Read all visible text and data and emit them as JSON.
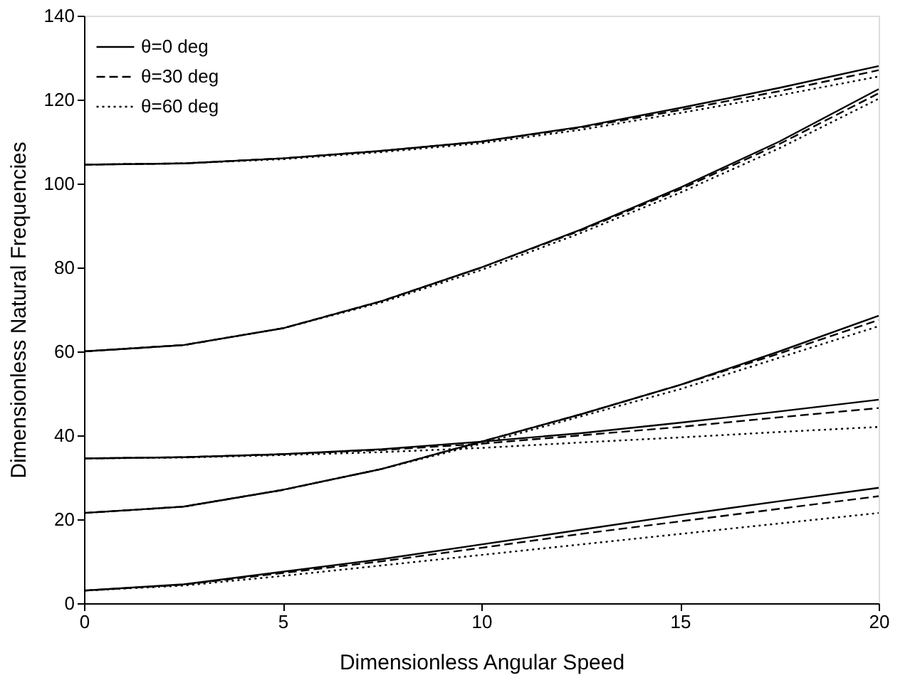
{
  "chart_data": {
    "type": "line",
    "xlabel": "Dimensionless Angular Speed",
    "ylabel": "Dimensionless Natural Frequencies",
    "x": [
      0,
      2.5,
      5,
      7.5,
      10,
      12.5,
      15,
      17.5,
      20
    ],
    "xlim": [
      0,
      20
    ],
    "xticks": [
      0,
      5,
      10,
      15,
      20
    ],
    "ylim": [
      0,
      140
    ],
    "yticks": [
      0,
      20,
      40,
      60,
      80,
      100,
      120,
      140
    ],
    "grid": false,
    "legend": "top left",
    "marker": "none",
    "series": [
      {
        "name": "θ=0 deg",
        "color": "#000000",
        "line_style": "solid",
        "values": [
          3,
          4.5,
          7.5,
          10.5,
          14,
          17.5,
          21,
          24.3,
          27.5
        ]
      },
      {
        "name": "θ=30 deg",
        "color": "#000000",
        "line_style": "dashed",
        "values": [
          3,
          4.4,
          7.2,
          10,
          13.2,
          16.5,
          19.5,
          22.5,
          25.5
        ]
      },
      {
        "name": "θ=60 deg",
        "color": "#000000",
        "line_style": "dotted",
        "values": [
          3,
          4.2,
          6.5,
          9,
          11.5,
          14,
          16.5,
          19,
          21.5
        ]
      },
      {
        "name": null,
        "color": "#000000",
        "line_style": "solid",
        "values": [
          21.5,
          23,
          27,
          32,
          38.5,
          45,
          52,
          60,
          68.5
        ]
      },
      {
        "name": null,
        "color": "#000000",
        "line_style": "dashed",
        "values": [
          21.5,
          23,
          27,
          32,
          38.5,
          45,
          52,
          59.5,
          67.5
        ]
      },
      {
        "name": null,
        "color": "#000000",
        "line_style": "dotted",
        "values": [
          21.5,
          23,
          27,
          32,
          38,
          44.5,
          51,
          58.5,
          66
        ]
      },
      {
        "name": null,
        "color": "#000000",
        "line_style": "solid",
        "values": [
          34.5,
          34.8,
          35.5,
          36.7,
          38.5,
          40.5,
          43,
          45.7,
          48.5
        ]
      },
      {
        "name": null,
        "color": "#000000",
        "line_style": "dashed",
        "values": [
          34.5,
          34.8,
          35.5,
          36.5,
          38,
          40,
          42,
          44.3,
          46.5
        ]
      },
      {
        "name": null,
        "color": "#000000",
        "line_style": "dotted",
        "values": [
          34.5,
          34.7,
          35.3,
          36,
          37,
          38.3,
          39.5,
          40.8,
          42
        ]
      },
      {
        "name": null,
        "color": "#000000",
        "line_style": "solid",
        "values": [
          60,
          61.5,
          65.5,
          72,
          80,
          89,
          99,
          110,
          122.5
        ]
      },
      {
        "name": null,
        "color": "#000000",
        "line_style": "dashed",
        "values": [
          60,
          61.5,
          65.5,
          72,
          80,
          88.8,
          98.6,
          109.4,
          121.5
        ]
      },
      {
        "name": null,
        "color": "#000000",
        "line_style": "dotted",
        "values": [
          60,
          61.5,
          65.5,
          71.7,
          79.4,
          88.2,
          97.8,
          108.4,
          120.2
        ]
      },
      {
        "name": null,
        "color": "#000000",
        "line_style": "solid",
        "values": [
          104.5,
          104.8,
          106,
          107.8,
          110,
          113.5,
          118,
          122.8,
          128
        ]
      },
      {
        "name": null,
        "color": "#000000",
        "line_style": "dashed",
        "values": [
          104.5,
          104.8,
          106,
          107.8,
          110,
          113.3,
          117.5,
          122,
          127
        ]
      },
      {
        "name": null,
        "color": "#000000",
        "line_style": "dotted",
        "values": [
          104.5,
          104.8,
          105.8,
          107.5,
          109.6,
          112.8,
          116.8,
          121,
          125.5
        ]
      }
    ]
  }
}
